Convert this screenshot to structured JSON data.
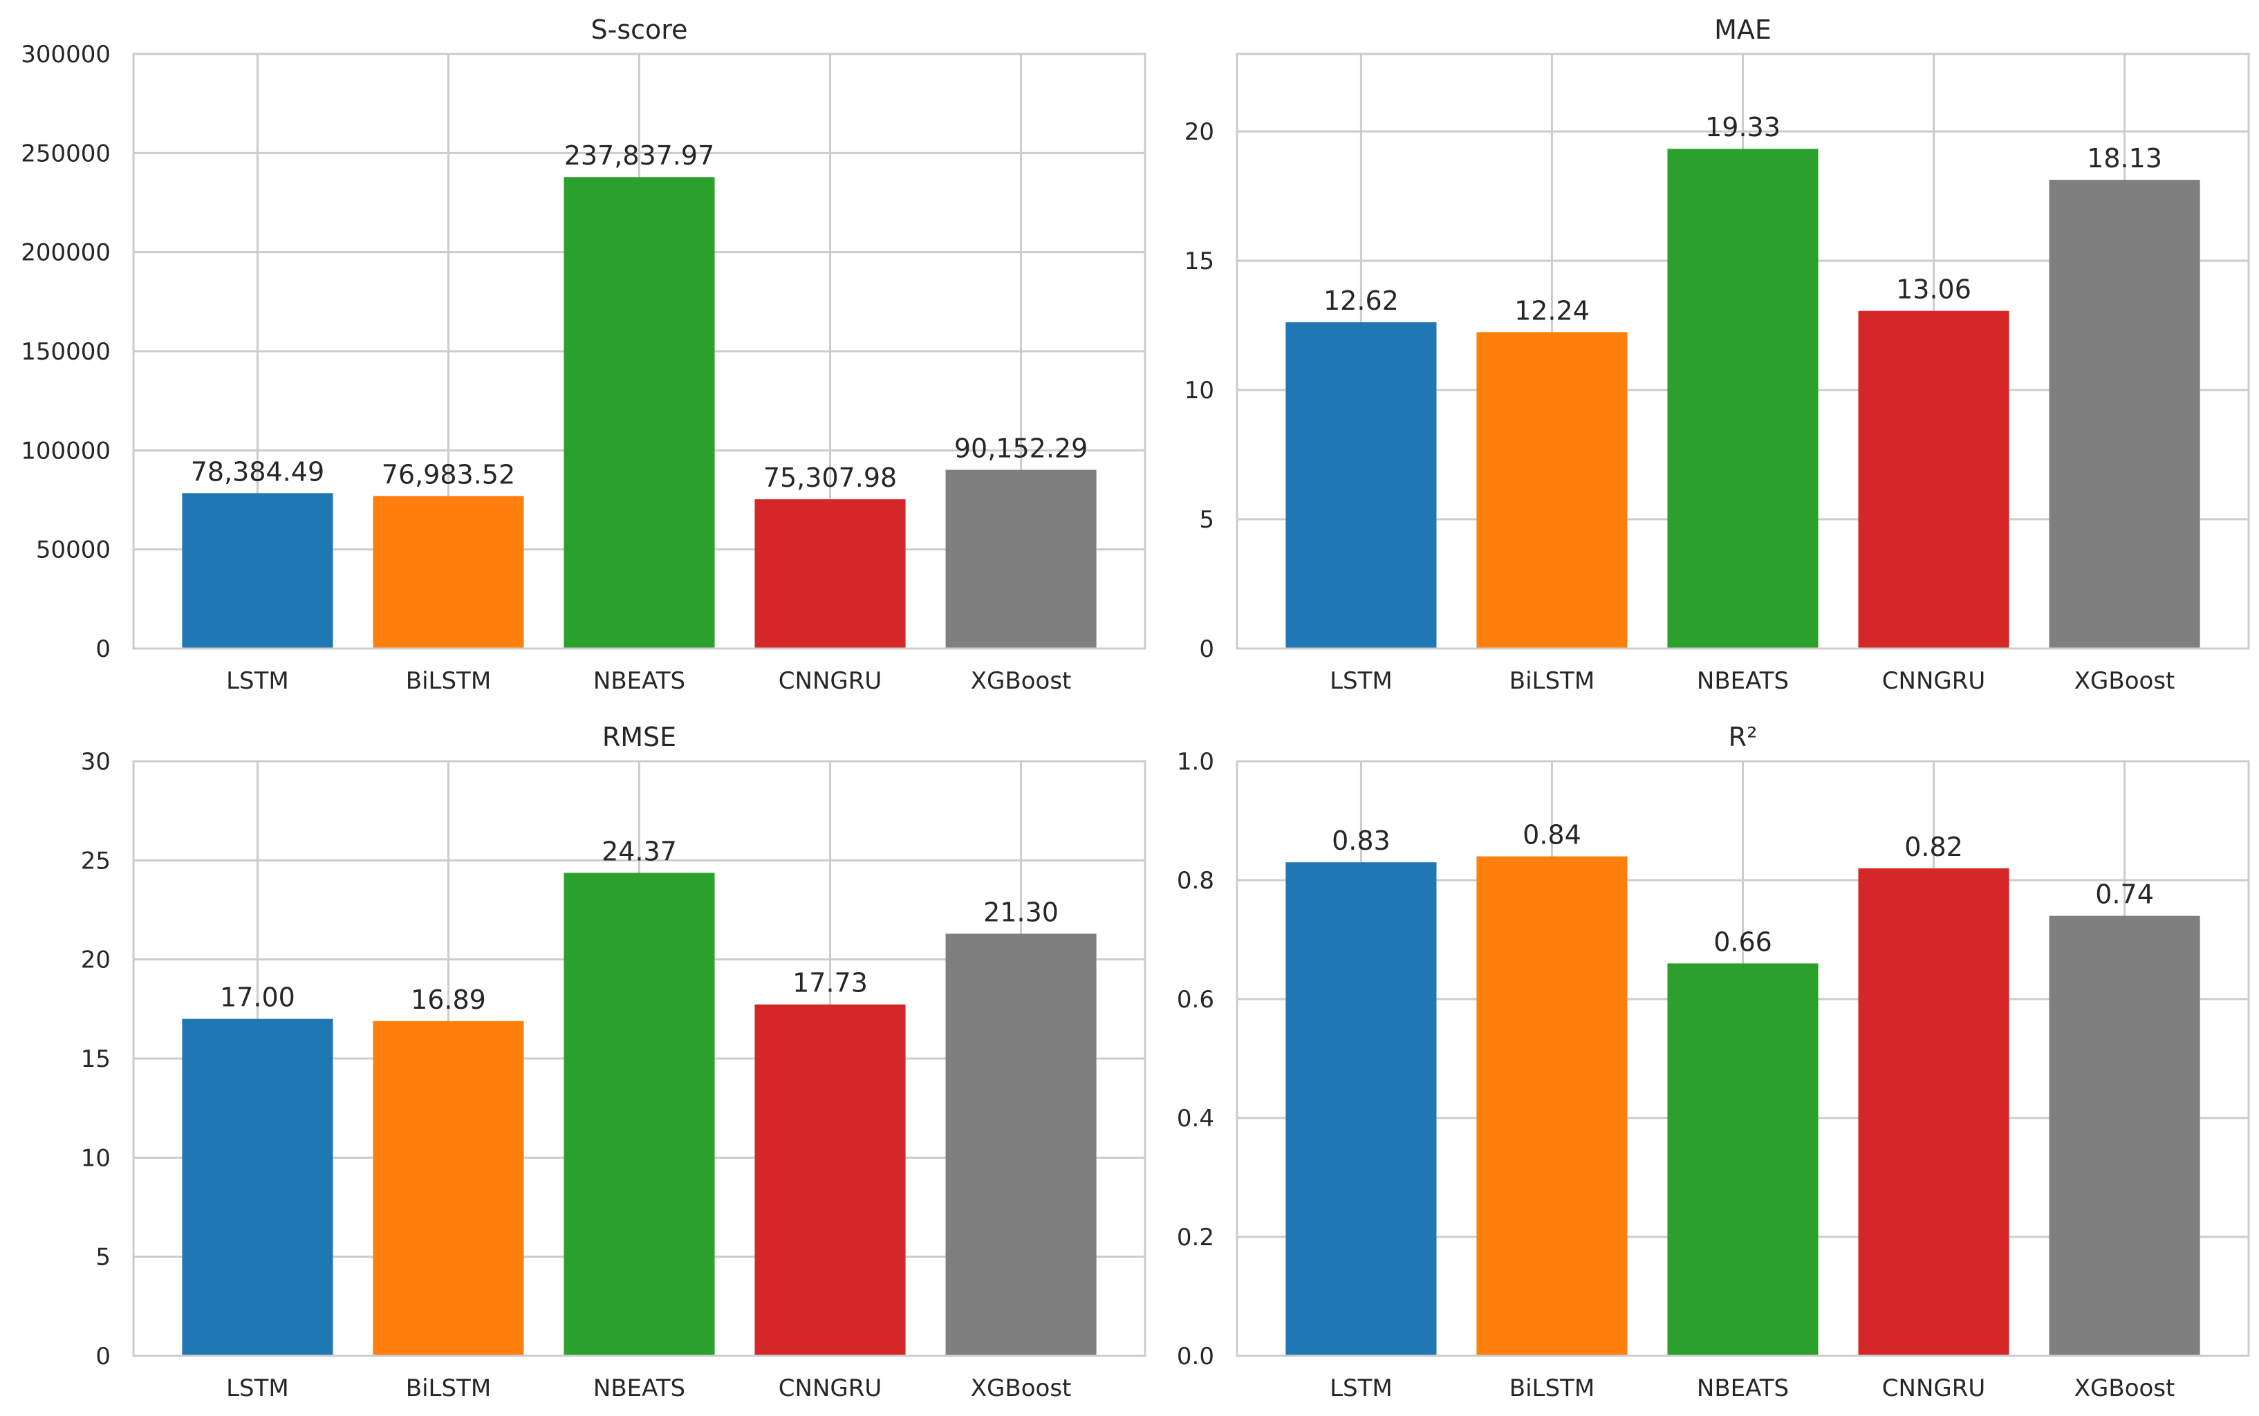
{
  "chart_data": [
    {
      "type": "bar",
      "title": "S-score",
      "categories": [
        "LSTM",
        "BiLSTM",
        "NBEATS",
        "CNNGRU",
        "XGBoost"
      ],
      "values": [
        78384.49,
        76983.52,
        237837.97,
        75307.98,
        90152.29
      ],
      "value_labels": [
        "78,384.49",
        "76,983.52",
        "237,837.97",
        "75,307.98",
        "90,152.29"
      ],
      "colors": [
        "#1f77b4",
        "#ff7f0e",
        "#2ca02c",
        "#d62728",
        "#7f7f7f"
      ],
      "ylim": [
        0,
        300000
      ],
      "yticks": [
        0,
        50000,
        100000,
        150000,
        200000,
        250000,
        300000
      ],
      "ytick_labels": [
        "0",
        "50000",
        "100000",
        "150000",
        "200000",
        "250000",
        "300000"
      ],
      "grid": true,
      "xlabel": "",
      "ylabel": ""
    },
    {
      "type": "bar",
      "title": "MAE",
      "categories": [
        "LSTM",
        "BiLSTM",
        "NBEATS",
        "CNNGRU",
        "XGBoost"
      ],
      "values": [
        12.62,
        12.24,
        19.33,
        13.06,
        18.13
      ],
      "value_labels": [
        "12.62",
        "12.24",
        "19.33",
        "13.06",
        "18.13"
      ],
      "colors": [
        "#1f77b4",
        "#ff7f0e",
        "#2ca02c",
        "#d62728",
        "#7f7f7f"
      ],
      "ylim": [
        0,
        23
      ],
      "yticks": [
        0,
        5,
        10,
        15,
        20
      ],
      "ytick_labels": [
        "0",
        "5",
        "10",
        "15",
        "20"
      ],
      "grid": true,
      "xlabel": "",
      "ylabel": ""
    },
    {
      "type": "bar",
      "title": "RMSE",
      "categories": [
        "LSTM",
        "BiLSTM",
        "NBEATS",
        "CNNGRU",
        "XGBoost"
      ],
      "values": [
        17.0,
        16.89,
        24.37,
        17.73,
        21.3
      ],
      "value_labels": [
        "17.00",
        "16.89",
        "24.37",
        "17.73",
        "21.30"
      ],
      "colors": [
        "#1f77b4",
        "#ff7f0e",
        "#2ca02c",
        "#d62728",
        "#7f7f7f"
      ],
      "ylim": [
        0,
        30
      ],
      "yticks": [
        0,
        5,
        10,
        15,
        20,
        25,
        30
      ],
      "ytick_labels": [
        "0",
        "5",
        "10",
        "15",
        "20",
        "25",
        "30"
      ],
      "grid": true,
      "xlabel": "",
      "ylabel": ""
    },
    {
      "type": "bar",
      "title": "R²",
      "categories": [
        "LSTM",
        "BiLSTM",
        "NBEATS",
        "CNNGRU",
        "XGBoost"
      ],
      "values": [
        0.83,
        0.84,
        0.66,
        0.82,
        0.74
      ],
      "value_labels": [
        "0.83",
        "0.84",
        "0.66",
        "0.82",
        "0.74"
      ],
      "colors": [
        "#1f77b4",
        "#ff7f0e",
        "#2ca02c",
        "#d62728",
        "#7f7f7f"
      ],
      "ylim": [
        0,
        1.0
      ],
      "yticks": [
        0,
        0.2,
        0.4,
        0.6,
        0.8,
        1.0
      ],
      "ytick_labels": [
        "0.0",
        "0.2",
        "0.4",
        "0.6",
        "0.8",
        "1.0"
      ],
      "grid": true,
      "xlabel": "",
      "ylabel": ""
    }
  ]
}
